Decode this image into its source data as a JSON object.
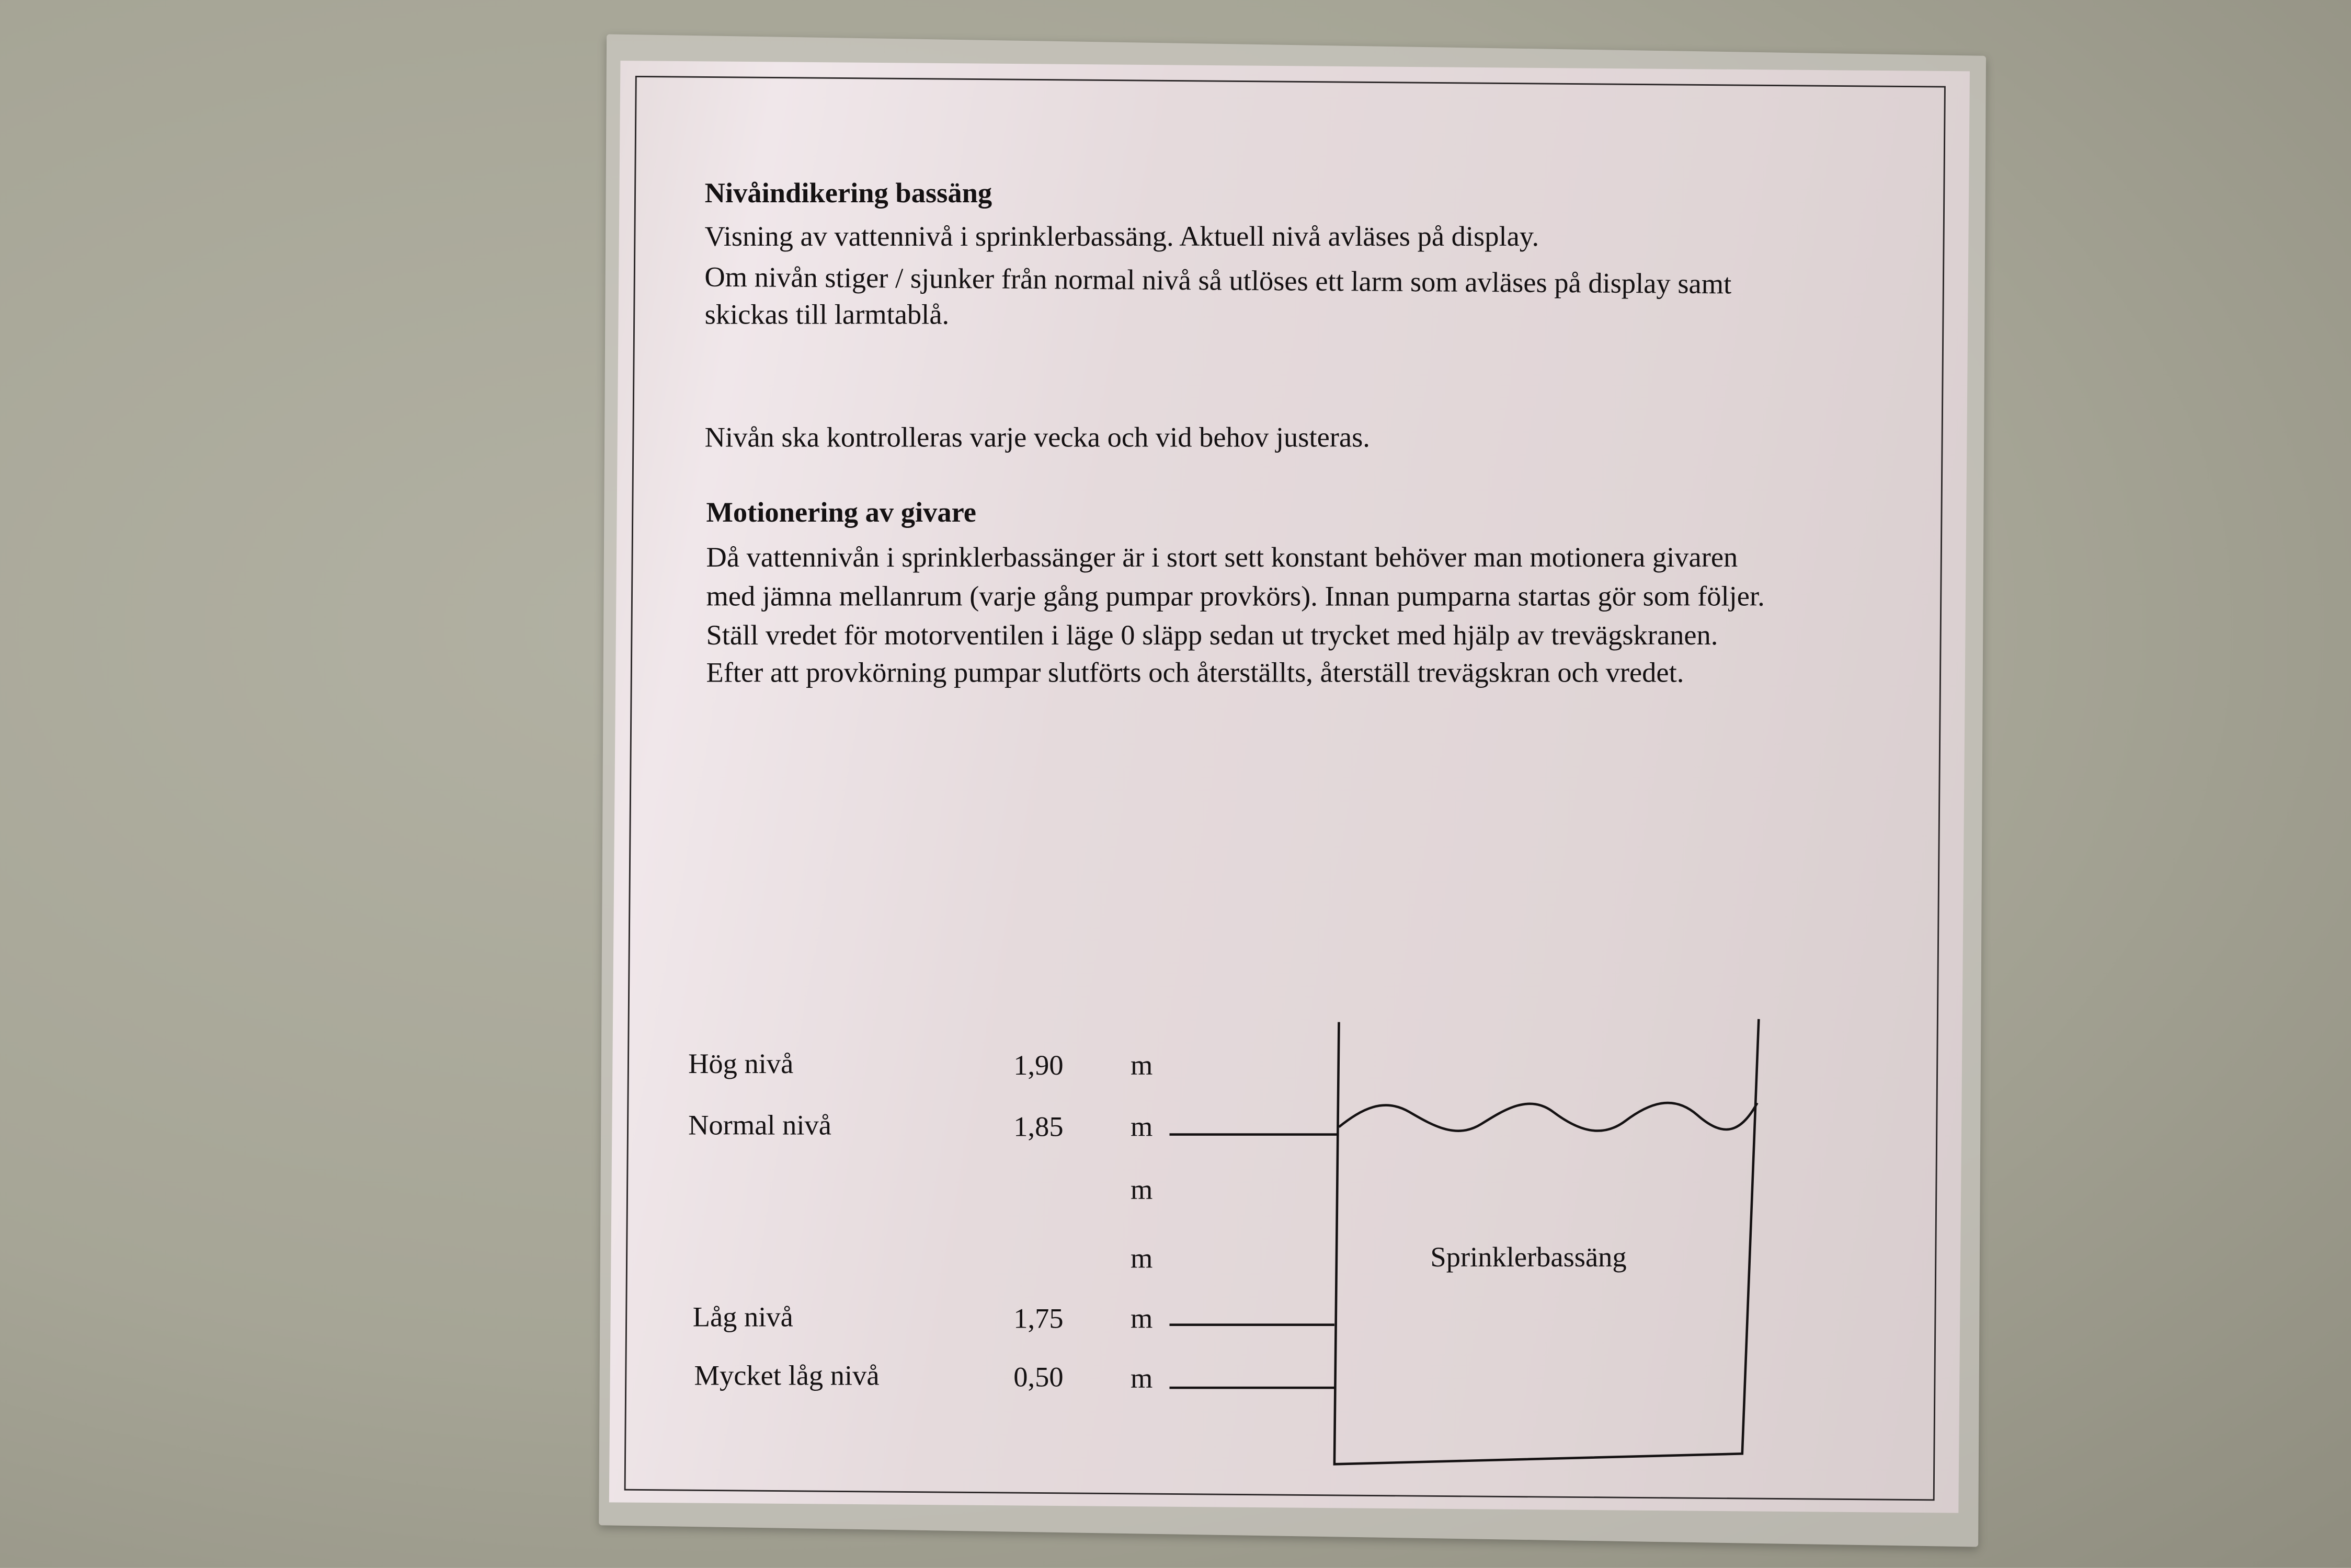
{
  "section1": {
    "heading": "Nivåindikering bassäng",
    "lines": [
      "Visning av vattennivå i sprinklerbassäng. Aktuell nivå avläses på display.",
      "Om nivån stiger / sjunker från normal nivå så utlöses ett larm som avläses på display samt",
      "skickas till larmtablå."
    ],
    "note": "Nivån ska kontrolleras varje vecka och vid behov justeras."
  },
  "section2": {
    "heading": "Motionering av givare",
    "lines": [
      "Då vattennivån i sprinklerbassänger är i stort sett konstant behöver man motionera givaren",
      "med jämna mellanrum (varje gång pumpar provkörs). Innan pumparna startas gör som följer.",
      "Ställ vredet för motorventilen i läge 0 släpp sedan ut trycket med hjälp av trevägskranen.",
      "Efter att provkörning pumpar slutförts och återställts, återställ trevägskran och vredet."
    ]
  },
  "diagram": {
    "tank_label": "Sprinklerbassäng",
    "levels": [
      {
        "label": "Hög nivå",
        "value": "1,90",
        "unit": "m"
      },
      {
        "label": "Normal nivå",
        "value": "1,85",
        "unit": "m"
      },
      {
        "label": "",
        "value": "",
        "unit": "m"
      },
      {
        "label": "",
        "value": "",
        "unit": "m"
      },
      {
        "label": "Låg nivå",
        "value": "1,75",
        "unit": "m"
      },
      {
        "label": "Mycket låg nivå",
        "value": "0,50",
        "unit": "m"
      }
    ]
  }
}
